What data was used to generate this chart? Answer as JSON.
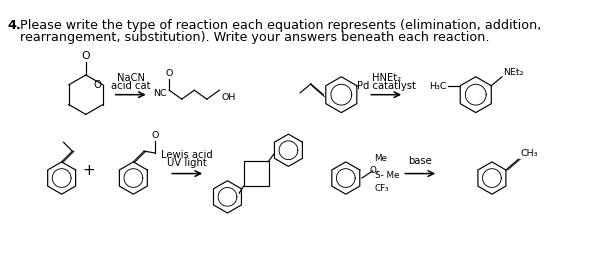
{
  "title_number": "4.",
  "title_text1": "Please write the type of reaction each equation represents (elimination, addition,",
  "title_text2": "rearrangement, substitution). Write your answers beneath each reaction.",
  "background": "#ffffff",
  "text_color": "#000000",
  "font_size_title": 9.2,
  "font_size_label": 7.2,
  "font_size_struct": 6.8,
  "r1_arrow_label1": "NaCN",
  "r1_arrow_label2": "acid cat",
  "r2_arrow_label1": "HNEt₂",
  "r2_arrow_label2": "Pd catatlyst",
  "r3_arrow_label1": "Lewis acid",
  "r3_arrow_label2": "UV light",
  "r4_arrow_label1": "base",
  "r4_arrow_label2": ""
}
